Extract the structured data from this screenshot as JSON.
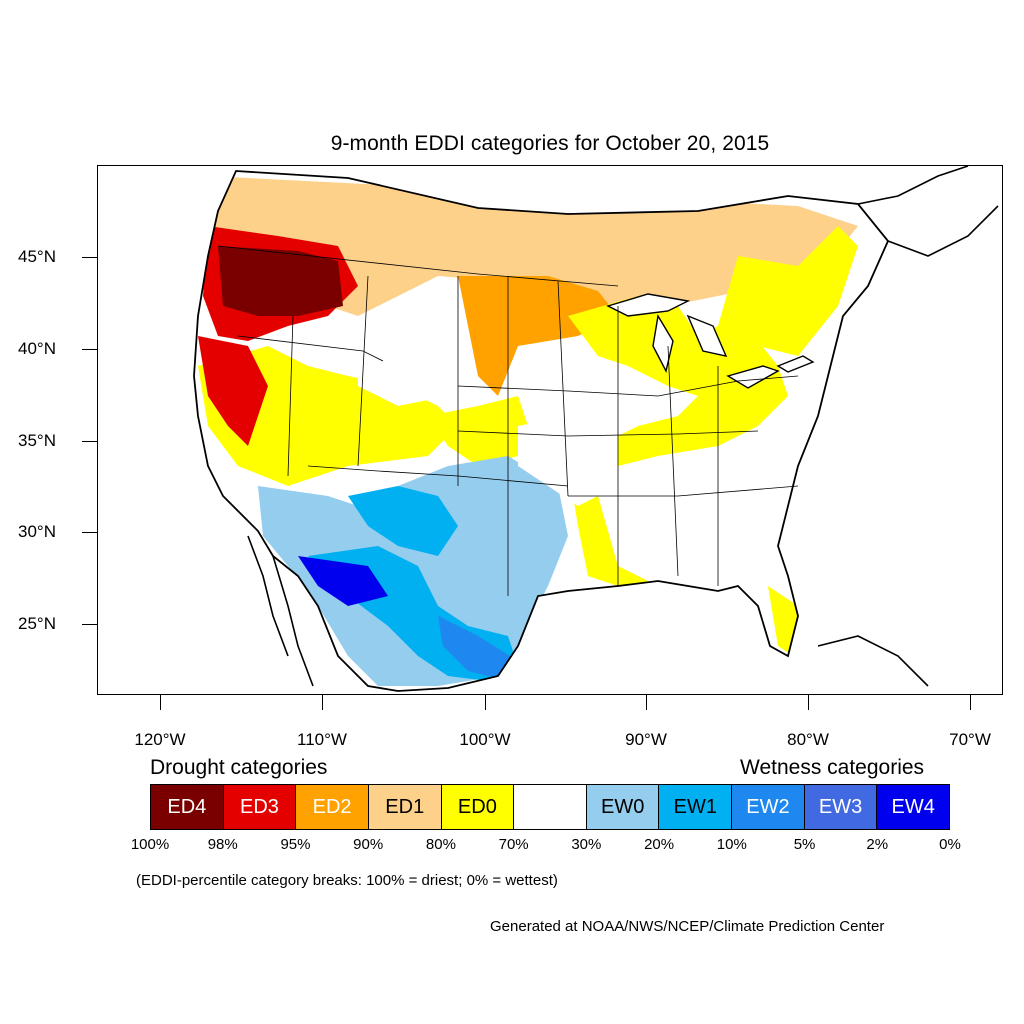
{
  "title": "9-month EDDI categories for October 20, 2015",
  "lat_labels": [
    "45°N",
    "40°N",
    "35°N",
    "30°N",
    "25°N"
  ],
  "lon_labels": [
    "120°W",
    "110°W",
    "100°W",
    "90°W",
    "80°W",
    "70°W"
  ],
  "drought_heading": "Drought categories",
  "wetness_heading": "Wetness categories",
  "categories": [
    {
      "label": "ED4",
      "color": "#7a0000",
      "text_color": "#ffffff"
    },
    {
      "label": "ED3",
      "color": "#e50000",
      "text_color": "#ffffff"
    },
    {
      "label": "ED2",
      "color": "#ffa200",
      "text_color": "#ffffff"
    },
    {
      "label": "ED1",
      "color": "#fed18a",
      "text_color": "#000000"
    },
    {
      "label": "ED0",
      "color": "#ffff00",
      "text_color": "#000000"
    },
    {
      "label": "",
      "color": "#ffffff",
      "text_color": "#000000"
    },
    {
      "label": "EW0",
      "color": "#95cdef",
      "text_color": "#000000"
    },
    {
      "label": "EW1",
      "color": "#00b0f0",
      "text_color": "#000000"
    },
    {
      "label": "EW2",
      "color": "#1e87f0",
      "text_color": "#ffffff"
    },
    {
      "label": "EW3",
      "color": "#4169e1",
      "text_color": "#ffffff"
    },
    {
      "label": "EW4",
      "color": "#0000ee",
      "text_color": "#ffffff"
    }
  ],
  "percentile_breaks": [
    "100%",
    "98%",
    "95%",
    "90%",
    "80%",
    "70%",
    "30%",
    "20%",
    "10%",
    "5%",
    "2%",
    "0%"
  ],
  "note": "(EDDI-percentile category breaks: 100% = driest; 0% = wettest)",
  "credit": "Generated at NOAA/NWS/NCEP/Climate Prediction Center"
}
